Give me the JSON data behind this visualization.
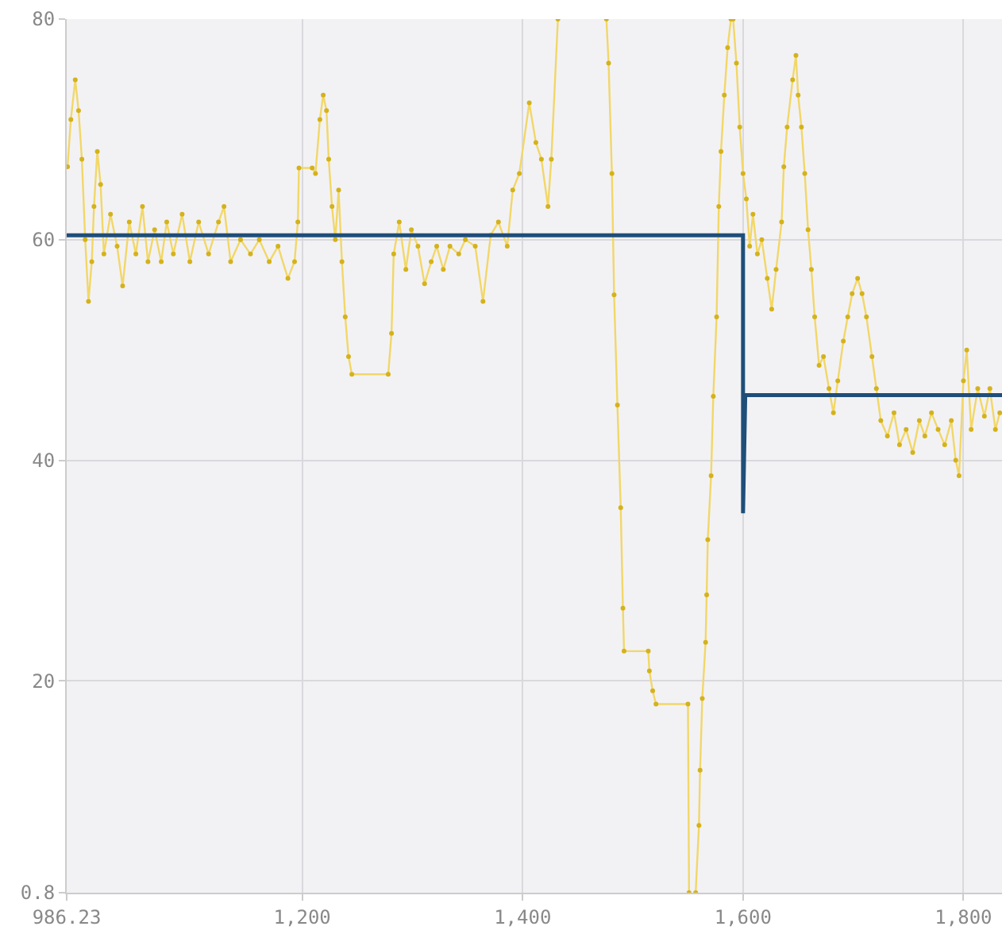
{
  "chart_data": {
    "type": "line",
    "xlim": [
      986.23,
      1835
    ],
    "xticks": [
      {
        "value": 986.23,
        "label": "986.23"
      },
      {
        "value": 1200,
        "label": "1,200"
      },
      {
        "value": 1400,
        "label": "1,400"
      },
      {
        "value": 1600,
        "label": "1,600"
      },
      {
        "value": 1800,
        "label": "1,800"
      }
    ],
    "ylim": [
      0.8,
      80
    ],
    "yticks": [
      0.8,
      20,
      40,
      60,
      80
    ],
    "grid": true,
    "series": [
      {
        "color": "#d4b21c",
        "marker": "circle",
        "x": [
          987,
          990,
          994,
          997,
          1000,
          1003,
          1006,
          1009,
          1011,
          1014,
          1017,
          1020,
          1026,
          1032,
          1037,
          1043,
          1049,
          1055,
          1060,
          1066,
          1072,
          1077,
          1083,
          1091,
          1098,
          1106,
          1115,
          1124,
          1129,
          1135,
          1144,
          1153,
          1161,
          1170,
          1178,
          1187,
          1193,
          1196,
          1197,
          1209,
          1212,
          1216,
          1219,
          1222,
          1224,
          1227,
          1230,
          1233,
          1236,
          1239,
          1242,
          1245,
          1278,
          1281,
          1283,
          1288,
          1294,
          1299,
          1305,
          1311,
          1317,
          1322,
          1328,
          1334,
          1342,
          1348,
          1357,
          1364,
          1371,
          1378,
          1386,
          1391,
          1397,
          1406,
          1412,
          1417,
          1423,
          1426,
          1432,
          1454,
          1476,
          1478,
          1481,
          1483,
          1486,
          1489,
          1491,
          1492,
          1514,
          1515,
          1518,
          1521,
          1550,
          1551,
          1554,
          1557,
          1560,
          1561,
          1563,
          1566,
          1567,
          1568,
          1571,
          1573,
          1576,
          1578,
          1580,
          1583,
          1586,
          1589,
          1590,
          1591,
          1594,
          1597,
          1600,
          1603,
          1606,
          1609,
          1613,
          1617,
          1622,
          1626,
          1630,
          1635,
          1637,
          1640,
          1645,
          1648,
          1650,
          1653,
          1656,
          1659,
          1662,
          1665,
          1669,
          1673,
          1678,
          1682,
          1686,
          1691,
          1695,
          1699,
          1704,
          1708,
          1712,
          1717,
          1721,
          1725,
          1731,
          1737,
          1742,
          1748,
          1754,
          1760,
          1765,
          1771,
          1777,
          1783,
          1789,
          1793,
          1796,
          1800,
          1803,
          1807,
          1813,
          1819,
          1824,
          1829,
          1833
        ],
        "values": [
          66.6,
          70.9,
          74.5,
          71.7,
          67.3,
          60,
          54.4,
          58,
          63,
          68,
          65,
          58.7,
          62.3,
          59.4,
          55.8,
          61.6,
          58.7,
          63,
          58,
          60.9,
          58,
          61.6,
          58.7,
          62.3,
          58,
          61.6,
          58.7,
          61.6,
          63,
          58,
          60,
          58.7,
          60,
          58,
          59.4,
          56.5,
          58,
          61.6,
          66.5,
          66.5,
          66,
          70.9,
          73.1,
          71.7,
          67.3,
          63,
          60,
          64.5,
          58,
          53,
          49.4,
          47.8,
          47.8,
          51.5,
          58.7,
          61.6,
          57.3,
          60.9,
          59.4,
          56,
          58,
          59.4,
          57.3,
          59.4,
          58.7,
          60,
          59.4,
          54.4,
          60.4,
          61.6,
          59.4,
          64.5,
          66,
          72.4,
          68.8,
          67.3,
          63,
          67.3,
          80,
          null,
          80,
          76,
          66,
          55,
          45,
          35.7,
          26.6,
          22.7,
          22.7,
          20.9,
          19.1,
          17.9,
          17.9,
          0.8,
          null,
          0.8,
          6.9,
          11.9,
          18.4,
          23.5,
          27.8,
          32.8,
          38.6,
          45.8,
          53,
          63,
          68,
          73.1,
          77.4,
          80,
          null,
          80,
          76,
          70.2,
          66,
          63.7,
          59.4,
          62.3,
          58.7,
          60,
          56.5,
          53.7,
          57.3,
          61.6,
          66.6,
          70.2,
          74.5,
          76.7,
          73.1,
          70.2,
          66,
          60.9,
          57.3,
          53,
          48.6,
          49.4,
          46.5,
          44.3,
          47.2,
          50.8,
          53,
          55.1,
          56.5,
          55.1,
          53,
          49.4,
          46.5,
          43.6,
          42.2,
          44.3,
          41.4,
          42.8,
          40.7,
          43.6,
          42.2,
          44.3,
          42.8,
          41.4,
          43.6,
          40,
          38.6,
          47.2,
          50,
          42.8,
          46.5,
          44,
          46.5,
          42.8,
          44.3
        ]
      },
      {
        "color": "#1f4e79",
        "marker": "none",
        "x": [
          986.23,
          1600,
          1600,
          1602,
          1835
        ],
        "values": [
          60.4,
          60.4,
          35.2,
          45.9,
          45.9
        ]
      }
    ]
  }
}
